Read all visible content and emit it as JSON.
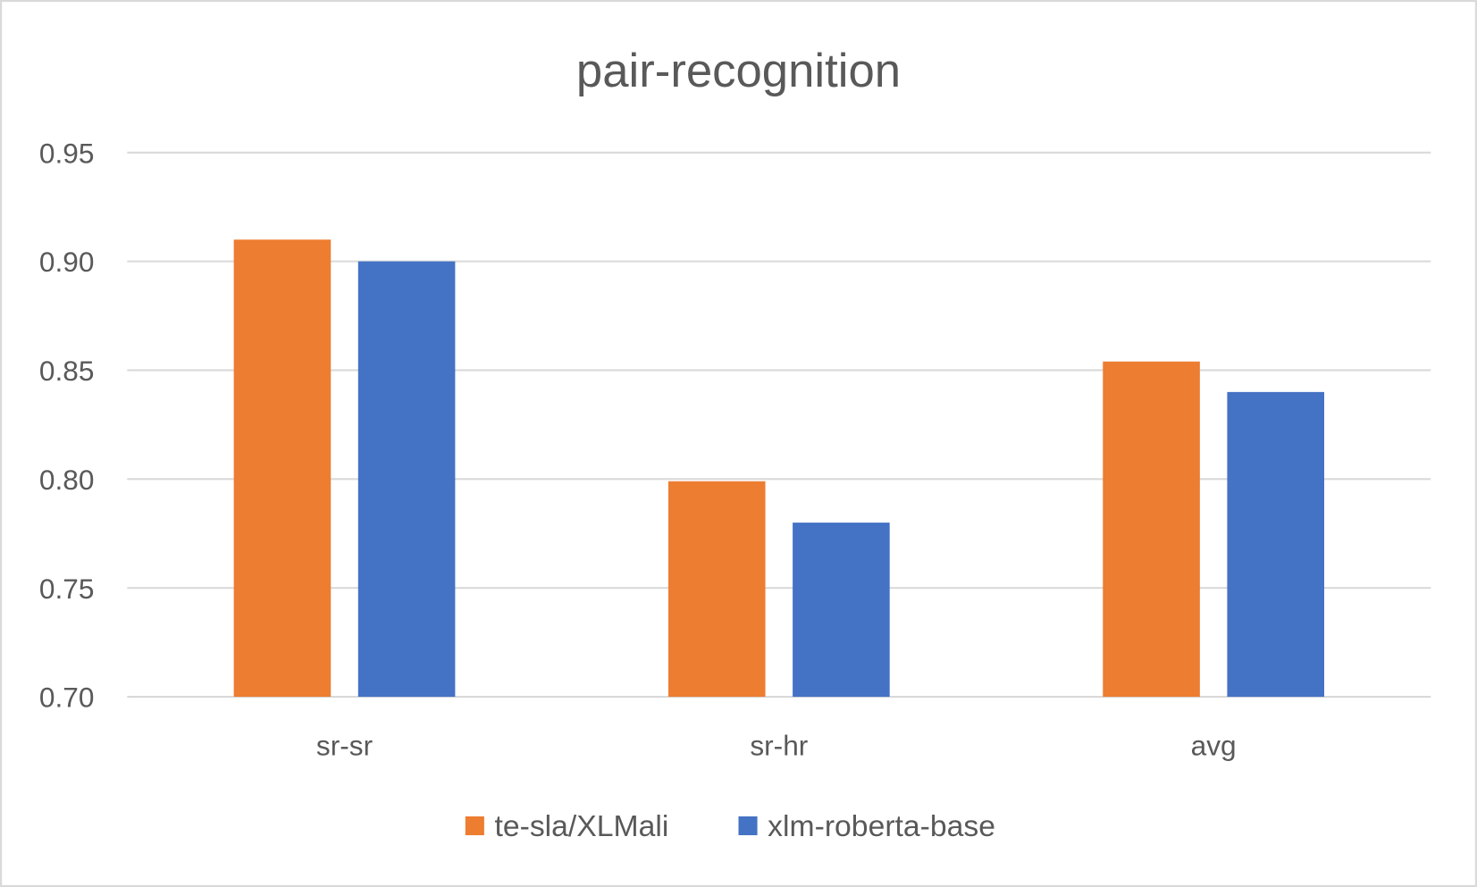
{
  "chart_data": {
    "type": "bar",
    "title": "pair-recognition",
    "xlabel": "",
    "ylabel": "",
    "categories": [
      "sr-sr",
      "sr-hr",
      "avg"
    ],
    "series": [
      {
        "name": "te-sla/XLMali",
        "color": "#ED7D31",
        "values": [
          0.91,
          0.799,
          0.854
        ]
      },
      {
        "name": "xlm-roberta-base",
        "color": "#4472C4",
        "values": [
          0.9,
          0.78,
          0.84
        ]
      }
    ],
    "ylim": [
      0.7,
      0.95
    ],
    "yticks": [
      "0.70",
      "0.75",
      "0.80",
      "0.85",
      "0.90",
      "0.95"
    ],
    "grid": true,
    "legend": "bottom"
  }
}
